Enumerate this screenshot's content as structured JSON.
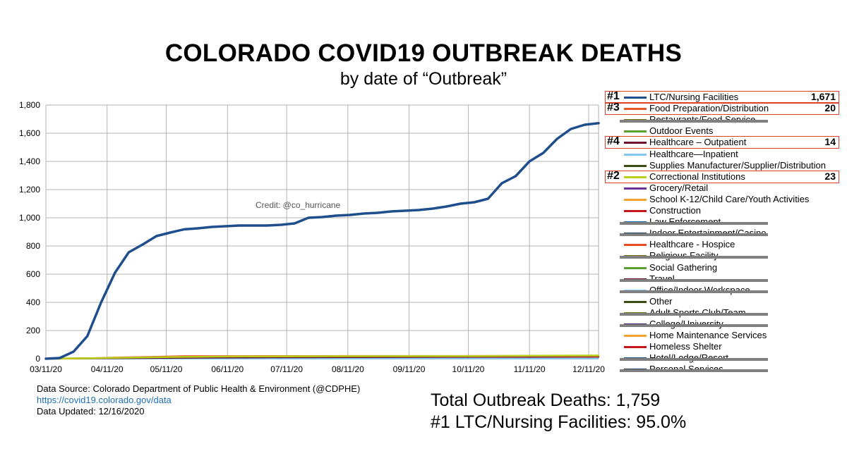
{
  "title": "COLORADO COVID19 OUTBREAK DEATHS",
  "subtitle": "by date of “Outbreak”",
  "credit": "Credit: @co_hurricane",
  "source": {
    "line1": "Data Source:  Colorado Department of Public Health & Environment (@CDPHE)",
    "link": "https://covid19.colorado.gov/data",
    "updated": "Data Updated:  12/16/2020"
  },
  "totals": {
    "line1": "Total Outbreak Deaths:  1,759",
    "line2": "#1 LTC/Nursing Facilities: 95.0%"
  },
  "legend": [
    {
      "rank": "#1",
      "label": "LTC/Nursing Facilities",
      "value": "1,671",
      "color": "#1f4e8c",
      "boxed": true,
      "struck": false
    },
    {
      "rank": "#3",
      "label": "Food Preparation/Distribution",
      "value": "20",
      "color": "#e8572b",
      "boxed": true,
      "struck": false
    },
    {
      "rank": "",
      "label": "Restaurants/Food Service",
      "value": "",
      "color": "#7a6d1a",
      "boxed": false,
      "struck": true
    },
    {
      "rank": "",
      "label": "Outdoor Events",
      "value": "",
      "color": "#5a9e32",
      "boxed": false,
      "struck": false
    },
    {
      "rank": "#4",
      "label": "Healthcare – Outpatient",
      "value": "14",
      "color": "#6b0f2f",
      "boxed": true,
      "struck": false
    },
    {
      "rank": "",
      "label": "Healthcare—Inpatient",
      "value": "",
      "color": "#85c6ee",
      "boxed": false,
      "struck": false
    },
    {
      "rank": "",
      "label": "Supplies Manufacturer/Supplier/Distribution",
      "value": "",
      "color": "#394a14",
      "boxed": false,
      "struck": false
    },
    {
      "rank": "#2",
      "label": "Correctional Institutions",
      "value": "23",
      "color": "#b9cf1a",
      "boxed": true,
      "struck": false
    },
    {
      "rank": "",
      "label": "Grocery/Retail",
      "value": "",
      "color": "#6a3294",
      "boxed": false,
      "struck": false
    },
    {
      "rank": "",
      "label": "School K-12/Child Care/Youth Activities",
      "value": "",
      "color": "#f2a12e",
      "boxed": false,
      "struck": false
    },
    {
      "rank": "",
      "label": "Construction",
      "value": "",
      "color": "#c4161c",
      "boxed": false,
      "struck": false
    },
    {
      "rank": "",
      "label": "Law Enforcement",
      "value": "",
      "color": "#1f6da8",
      "boxed": false,
      "struck": true
    },
    {
      "rank": "",
      "label": "Indoor Entertainment/Casino",
      "value": "",
      "color": "#1b3a5c",
      "boxed": false,
      "struck": true
    },
    {
      "rank": "",
      "label": "Healthcare - Hospice",
      "value": "",
      "color": "#ea4a26",
      "boxed": false,
      "struck": false
    },
    {
      "rank": "",
      "label": "Religious Facility",
      "value": "",
      "color": "#7a6d1a",
      "boxed": false,
      "struck": true
    },
    {
      "rank": "",
      "label": "Social Gathering",
      "value": "",
      "color": "#5a9e32",
      "boxed": false,
      "struck": false
    },
    {
      "rank": "",
      "label": "Travel",
      "value": "",
      "color": "#6b0f2f",
      "boxed": false,
      "struck": true
    },
    {
      "rank": "",
      "label": "Office/Indoor Workspace",
      "value": "",
      "color": "#85c6ee",
      "boxed": false,
      "struck": true
    },
    {
      "rank": "",
      "label": "Other",
      "value": "",
      "color": "#394a14",
      "boxed": false,
      "struck": false
    },
    {
      "rank": "",
      "label": "Adult Sports Club/Team",
      "value": "",
      "color": "#6a7a1a",
      "boxed": false,
      "struck": true
    },
    {
      "rank": "",
      "label": "College/University",
      "value": "",
      "color": "#3a1f6a",
      "boxed": false,
      "struck": true
    },
    {
      "rank": "",
      "label": "Home Maintenance Services",
      "value": "",
      "color": "#f2a12e",
      "boxed": false,
      "struck": false
    },
    {
      "rank": "",
      "label": "Homeless Shelter",
      "value": "",
      "color": "#c4161c",
      "boxed": false,
      "struck": false
    },
    {
      "rank": "",
      "label": "Hotel/Lodge/Resort",
      "value": "",
      "color": "#1f5a8c",
      "boxed": false,
      "struck": true
    },
    {
      "rank": "",
      "label": "Personal Services",
      "value": "",
      "color": "#1b3a5c",
      "boxed": false,
      "struck": true
    }
  ],
  "chart_data": {
    "type": "line",
    "title": "COLORADO COVID19 OUTBREAK DEATHS",
    "subtitle": "by date of “Outbreak”",
    "xlabel": "",
    "ylabel": "",
    "ylim": [
      0,
      1800
    ],
    "yticks": [
      0,
      200,
      400,
      600,
      800,
      1000,
      1200,
      1400,
      1600,
      1800
    ],
    "ytick_labels": [
      "0",
      "200",
      "400",
      "600",
      "800",
      "1,000",
      "1,200",
      "1,400",
      "1,600",
      "1,800"
    ],
    "xlim": [
      "2020-03-11",
      "2020-12-16"
    ],
    "xtick_labels": [
      "03/11/20",
      "04/11/20",
      "05/11/20",
      "06/11/20",
      "07/11/20",
      "08/11/20",
      "09/11/20",
      "10/11/20",
      "11/11/20",
      "12/11/20"
    ],
    "xtick_dates": [
      "2020-03-11",
      "2020-04-11",
      "2020-05-11",
      "2020-06-11",
      "2020-07-11",
      "2020-08-11",
      "2020-09-11",
      "2020-10-11",
      "2020-11-11",
      "2020-12-11"
    ],
    "grid": true,
    "legend_position": "right",
    "series": [
      {
        "name": "LTC/Nursing Facilities",
        "color": "#1f4e8c",
        "points": [
          [
            "2020-03-11",
            0
          ],
          [
            "2020-03-18",
            5
          ],
          [
            "2020-03-25",
            50
          ],
          [
            "2020-04-01",
            160
          ],
          [
            "2020-04-08",
            400
          ],
          [
            "2020-04-15",
            610
          ],
          [
            "2020-04-22",
            755
          ],
          [
            "2020-04-29",
            810
          ],
          [
            "2020-05-06",
            870
          ],
          [
            "2020-05-13",
            895
          ],
          [
            "2020-05-20",
            918
          ],
          [
            "2020-05-27",
            925
          ],
          [
            "2020-06-03",
            935
          ],
          [
            "2020-06-10",
            940
          ],
          [
            "2020-06-17",
            945
          ],
          [
            "2020-06-24",
            945
          ],
          [
            "2020-07-01",
            945
          ],
          [
            "2020-07-08",
            950
          ],
          [
            "2020-07-15",
            960
          ],
          [
            "2020-07-22",
            1000
          ],
          [
            "2020-07-29",
            1005
          ],
          [
            "2020-08-05",
            1015
          ],
          [
            "2020-08-12",
            1020
          ],
          [
            "2020-08-19",
            1030
          ],
          [
            "2020-08-26",
            1035
          ],
          [
            "2020-09-02",
            1045
          ],
          [
            "2020-09-09",
            1050
          ],
          [
            "2020-09-16",
            1055
          ],
          [
            "2020-09-23",
            1065
          ],
          [
            "2020-09-30",
            1080
          ],
          [
            "2020-10-07",
            1100
          ],
          [
            "2020-10-14",
            1110
          ],
          [
            "2020-10-21",
            1135
          ],
          [
            "2020-10-28",
            1245
          ],
          [
            "2020-11-04",
            1295
          ],
          [
            "2020-11-11",
            1400
          ],
          [
            "2020-11-18",
            1460
          ],
          [
            "2020-11-25",
            1560
          ],
          [
            "2020-12-02",
            1630
          ],
          [
            "2020-12-09",
            1660
          ],
          [
            "2020-12-16",
            1671
          ]
        ]
      },
      {
        "name": "Correctional Institutions",
        "color": "#b9cf1a",
        "points": [
          [
            "2020-03-11",
            0
          ],
          [
            "2020-04-08",
            5
          ],
          [
            "2020-05-13",
            12
          ],
          [
            "2020-06-17",
            16
          ],
          [
            "2020-08-12",
            18
          ],
          [
            "2020-10-14",
            19
          ],
          [
            "2020-11-11",
            21
          ],
          [
            "2020-12-16",
            23
          ]
        ]
      },
      {
        "name": "Food Preparation/Distribution",
        "color": "#e8572b",
        "points": [
          [
            "2020-03-11",
            0
          ],
          [
            "2020-04-01",
            3
          ],
          [
            "2020-04-15",
            8
          ],
          [
            "2020-05-06",
            14
          ],
          [
            "2020-05-20",
            18
          ],
          [
            "2020-07-15",
            19
          ],
          [
            "2020-12-16",
            20
          ]
        ]
      },
      {
        "name": "Healthcare – Outpatient",
        "color": "#6b0f2f",
        "points": [
          [
            "2020-03-11",
            0
          ],
          [
            "2020-04-15",
            4
          ],
          [
            "2020-06-10",
            9
          ],
          [
            "2020-09-09",
            12
          ],
          [
            "2020-12-16",
            14
          ]
        ]
      }
    ]
  }
}
